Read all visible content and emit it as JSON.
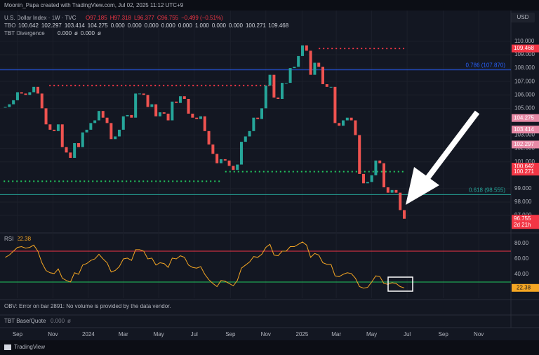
{
  "header": {
    "credit": "Moonin_Papa created with TradingView.com, Jul 02, 2025 11:12 UTC+9",
    "currency": "USD"
  },
  "legend": {
    "symbol": "U.S. Dollar Index · 1W · TVC",
    "ohlc": [
      "O97.185",
      "H97.318",
      "L96.377",
      "C96.755",
      "−0.499 (−0.51%)"
    ],
    "tbo_name": "TBO",
    "tbo_values": [
      "100.642",
      "102.297",
      "103.414",
      "104.275",
      "0.000",
      "0.000",
      "0.000",
      "0.000",
      "0.000",
      "1.000",
      "0.000",
      "0.000",
      "100.271",
      "109.468"
    ],
    "tbt_divergence": "TBT Divergence",
    "tbt_values": [
      "0.000",
      "ø",
      "0.000",
      "ø"
    ],
    "obv": "OBV: Error on bar 2891: No volume is provided by the data vendor.",
    "tbt_base": "TBT Base/Quote",
    "tbt_base_values": [
      "0.000",
      "ø"
    ]
  },
  "footer": {
    "brand": "TradingView"
  },
  "chart_data": [
    {
      "type": "candlestick",
      "up_color": "#26a69a",
      "down_color": "#ef5350",
      "grid": true,
      "x": [
        -3,
        -2,
        -1,
        0,
        1,
        2,
        3,
        4,
        5,
        6,
        7,
        8,
        9,
        10,
        11,
        12,
        13,
        14,
        15,
        16,
        17,
        18,
        19,
        20,
        21,
        22,
        23,
        24,
        25,
        26,
        27,
        28,
        29,
        30,
        31,
        32,
        33,
        34,
        35,
        36,
        37,
        38,
        39,
        40,
        41,
        42,
        43,
        44,
        45,
        46,
        47,
        48,
        49,
        50,
        51,
        52,
        53,
        54,
        55,
        56,
        57,
        58,
        59,
        60,
        61,
        62,
        63,
        64,
        65,
        66,
        67,
        68,
        69,
        70,
        71,
        72,
        73,
        74,
        75,
        76,
        77,
        78,
        79,
        80,
        81,
        82,
        83,
        84,
        85,
        86,
        87,
        88,
        89,
        90,
        91,
        92,
        93,
        94,
        95
      ],
      "values": [
        105.1,
        105.3,
        105.6,
        106.2,
        106.1,
        106.0,
        106.2,
        106.6,
        106.1,
        105.0,
        103.8,
        103.4,
        103.3,
        103.8,
        102.1,
        101.7,
        101.3,
        102.4,
        102.1,
        103.2,
        103.4,
        103.9,
        104.1,
        104.8,
        104.3,
        103.9,
        102.7,
        102.9,
        103.4,
        104.4,
        104.5,
        104.3,
        106.1,
        106.1,
        106.0,
        105.1,
        105.3,
        104.4,
        104.7,
        104.6,
        104.1,
        105.5,
        105.4,
        105.9,
        105.7,
        104.6,
        104.3,
        104.2,
        104.4,
        103.3,
        102.3,
        101.6,
        100.9,
        101.2,
        101.1,
        100.7,
        100.4,
        100.8,
        102.5,
        102.9,
        103.3,
        104.3,
        104.2,
        105.0,
        106.7,
        107.5,
        105.8,
        105.7,
        106.9,
        106.9,
        108.0,
        108.1,
        108.9,
        109.7,
        109.3,
        107.5,
        108.4,
        108.1,
        106.8,
        106.6,
        106.6,
        103.9,
        103.7,
        104.1,
        104.3,
        104.1,
        103.0,
        100.1,
        99.4,
        99.5,
        100.0,
        101.1,
        100.9,
        99.1,
        98.7,
        98.9,
        98.7,
        97.4,
        96.755
      ],
      "xlim": [
        -4.3,
        121.2
      ],
      "xticks": [
        {
          "value": 0,
          "label": "Sep"
        },
        {
          "value": 8.7,
          "label": "Nov"
        },
        {
          "value": 17.4,
          "label": "2024"
        },
        {
          "value": 26,
          "label": "Mar"
        },
        {
          "value": 34.7,
          "label": "May"
        },
        {
          "value": 43.4,
          "label": "Jul"
        },
        {
          "value": 52.3,
          "label": "Sep"
        },
        {
          "value": 61,
          "label": "Nov"
        },
        {
          "value": 69.9,
          "label": "2025"
        },
        {
          "value": 78.3,
          "label": "Mar"
        },
        {
          "value": 87,
          "label": "May"
        },
        {
          "value": 95.7,
          "label": "Jul"
        },
        {
          "value": 104.6,
          "label": "Sep"
        },
        {
          "value": 113.3,
          "label": "Nov"
        }
      ],
      "ylim": [
        95.8,
        112.3
      ],
      "yticks": [
        {
          "value": 110,
          "label": "110.000"
        },
        {
          "value": 109,
          "label": "109.000"
        },
        {
          "value": 108,
          "label": "108.000"
        },
        {
          "value": 107,
          "label": "107.000"
        },
        {
          "value": 106,
          "label": "106.000"
        },
        {
          "value": 105,
          "label": "105.000"
        },
        {
          "value": 103,
          "label": "103.000"
        },
        {
          "value": 102,
          "label": "102.000"
        },
        {
          "value": 101,
          "label": "101.000"
        },
        {
          "value": 99,
          "label": "99.000"
        },
        {
          "value": 98,
          "label": "98.000"
        },
        {
          "value": 97,
          "label": "97.000"
        }
      ],
      "fib_levels": [
        {
          "value": 107.87,
          "label": "0.786 (107.870)",
          "color": "#2962ff"
        },
        {
          "value": 98.555,
          "label": "0.618 (98.555)",
          "color": "#26a69a"
        }
      ],
      "dotted_levels": [
        {
          "value": 109.468,
          "x_range": [
            74,
            95
          ],
          "color": "#f23645"
        },
        {
          "value": 106.7,
          "x_range": [
            7.8,
            63
          ],
          "color": "#f23645"
        },
        {
          "value": 100.271,
          "x_range": [
            51,
            95
          ],
          "color": "#22c55e"
        },
        {
          "value": 99.55,
          "x_range": [
            -3.4,
            50
          ],
          "color": "#22c55e"
        }
      ],
      "price_labels": [
        {
          "value": 109.468,
          "color": "#f23645"
        },
        {
          "value": 104.275,
          "color": "#e78aa6"
        },
        {
          "value": 103.414,
          "color": "#e78aa6"
        },
        {
          "value": 102.297,
          "color": "#e78aa6"
        },
        {
          "value": 100.642,
          "color": "#f23645"
        },
        {
          "value": 100.271,
          "color": "#f23645"
        },
        {
          "value": 96.755,
          "color": "#f23645",
          "sub": "2d 21h"
        }
      ]
    },
    {
      "type": "line",
      "name": "RSI",
      "color": "#f5a623",
      "values": [
        62,
        65,
        70,
        75,
        76,
        74,
        75,
        78,
        70,
        55,
        45,
        42,
        41,
        47,
        35,
        32,
        30,
        42,
        40,
        52,
        54,
        58,
        60,
        66,
        60,
        55,
        43,
        45,
        50,
        60,
        61,
        58,
        72,
        72,
        70,
        60,
        61,
        52,
        55,
        54,
        49,
        61,
        60,
        64,
        62,
        52,
        49,
        48,
        50,
        40,
        33,
        28,
        24,
        32,
        31,
        28,
        25,
        32,
        48,
        52,
        56,
        63,
        62,
        66,
        75,
        79,
        65,
        64,
        70,
        70,
        76,
        76,
        79,
        82,
        78,
        62,
        67,
        65,
        55,
        53,
        53,
        38,
        37,
        40,
        42,
        41,
        35,
        24,
        22,
        23,
        30,
        38,
        37,
        28,
        27,
        29,
        28,
        24,
        22.38
      ],
      "ylim": [
        9,
        91
      ],
      "yticks": [
        {
          "value": 80,
          "label": "80.00"
        },
        {
          "value": 60,
          "label": "60.00"
        },
        {
          "value": 40,
          "label": "40.00"
        }
      ],
      "levels": [
        {
          "value": 70,
          "color": "#f23645"
        },
        {
          "value": 30,
          "color": "#22c55e"
        }
      ]
    }
  ]
}
